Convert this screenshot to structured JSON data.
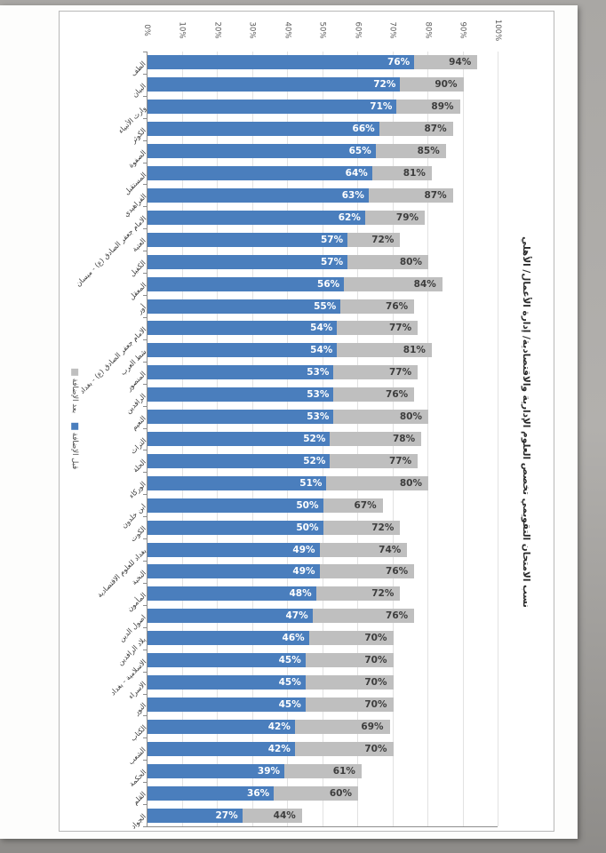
{
  "legend": [
    {
      "label": "بعد الإضافة",
      "color": "#bfbfbf"
    },
    {
      "label": "قبل الإضافة",
      "color": "#4a7ebd"
    }
  ],
  "chart_data": {
    "type": "bar",
    "orientation": "horizontal",
    "title": "نسب الامتحان التقويمي تخصص العلوم الإدارية والاقتصادية/ إدارة الأعمال/ الأهلي",
    "legend_position": "left-rotated",
    "grid": true,
    "xlim": [
      0,
      100
    ],
    "x_ticks": [
      "0%",
      "10%",
      "20%",
      "30%",
      "40%",
      "50%",
      "60%",
      "70%",
      "80%",
      "90%",
      "100%"
    ],
    "value_label_format": "percent",
    "categories": [
      "الطف",
      "البيان",
      "وارث الأنبياء",
      "الكوثر",
      "الصفوة",
      "المستقبل",
      "الفراهيدي",
      "الامام جعفر الصادق (ع) - ميسان",
      "العتبة",
      "الكفيل",
      "المعقل",
      "أور",
      "الامام جعفر الصادق (ع) - بغداد",
      "شط العرب",
      "المنصور",
      "الرافدين",
      "النعيم",
      "التراث",
      "الحلة",
      "الوركاء",
      "ابن خلدون",
      "الكوت",
      "بغداد للعلوم الاقتصادية",
      "النخبة",
      "المأمون",
      "اصول الدين",
      "بلاد الرافدين",
      "الاسلامية - بغداد",
      "الاسراء",
      "النور",
      "الكتاب",
      "الشعب",
      "الحكمة",
      "القلم",
      "الجواد"
    ],
    "series": [
      {
        "name": "قبل الإضافة",
        "color": "#4a7ebd",
        "text_color": "#ffffff",
        "values": [
          76,
          72,
          71,
          66,
          65,
          64,
          63,
          62,
          57,
          57,
          56,
          55,
          54,
          54,
          53,
          53,
          53,
          52,
          52,
          51,
          50,
          50,
          49,
          49,
          48,
          47,
          46,
          45,
          45,
          45,
          42,
          42,
          39,
          36,
          27
        ]
      },
      {
        "name": "بعد الإضافة",
        "color": "#bfbfbf",
        "text_color": "#3d3d3d",
        "values": [
          94,
          90,
          89,
          87,
          85,
          81,
          87,
          79,
          72,
          80,
          84,
          76,
          77,
          81,
          77,
          76,
          80,
          78,
          77,
          80,
          67,
          72,
          74,
          76,
          72,
          76,
          70,
          70,
          70,
          70,
          69,
          70,
          61,
          60,
          44
        ]
      }
    ],
    "colors": {
      "axis": "#8c8c8c",
      "gridline": "#e2e2e2",
      "tick_text": "#595959"
    }
  }
}
